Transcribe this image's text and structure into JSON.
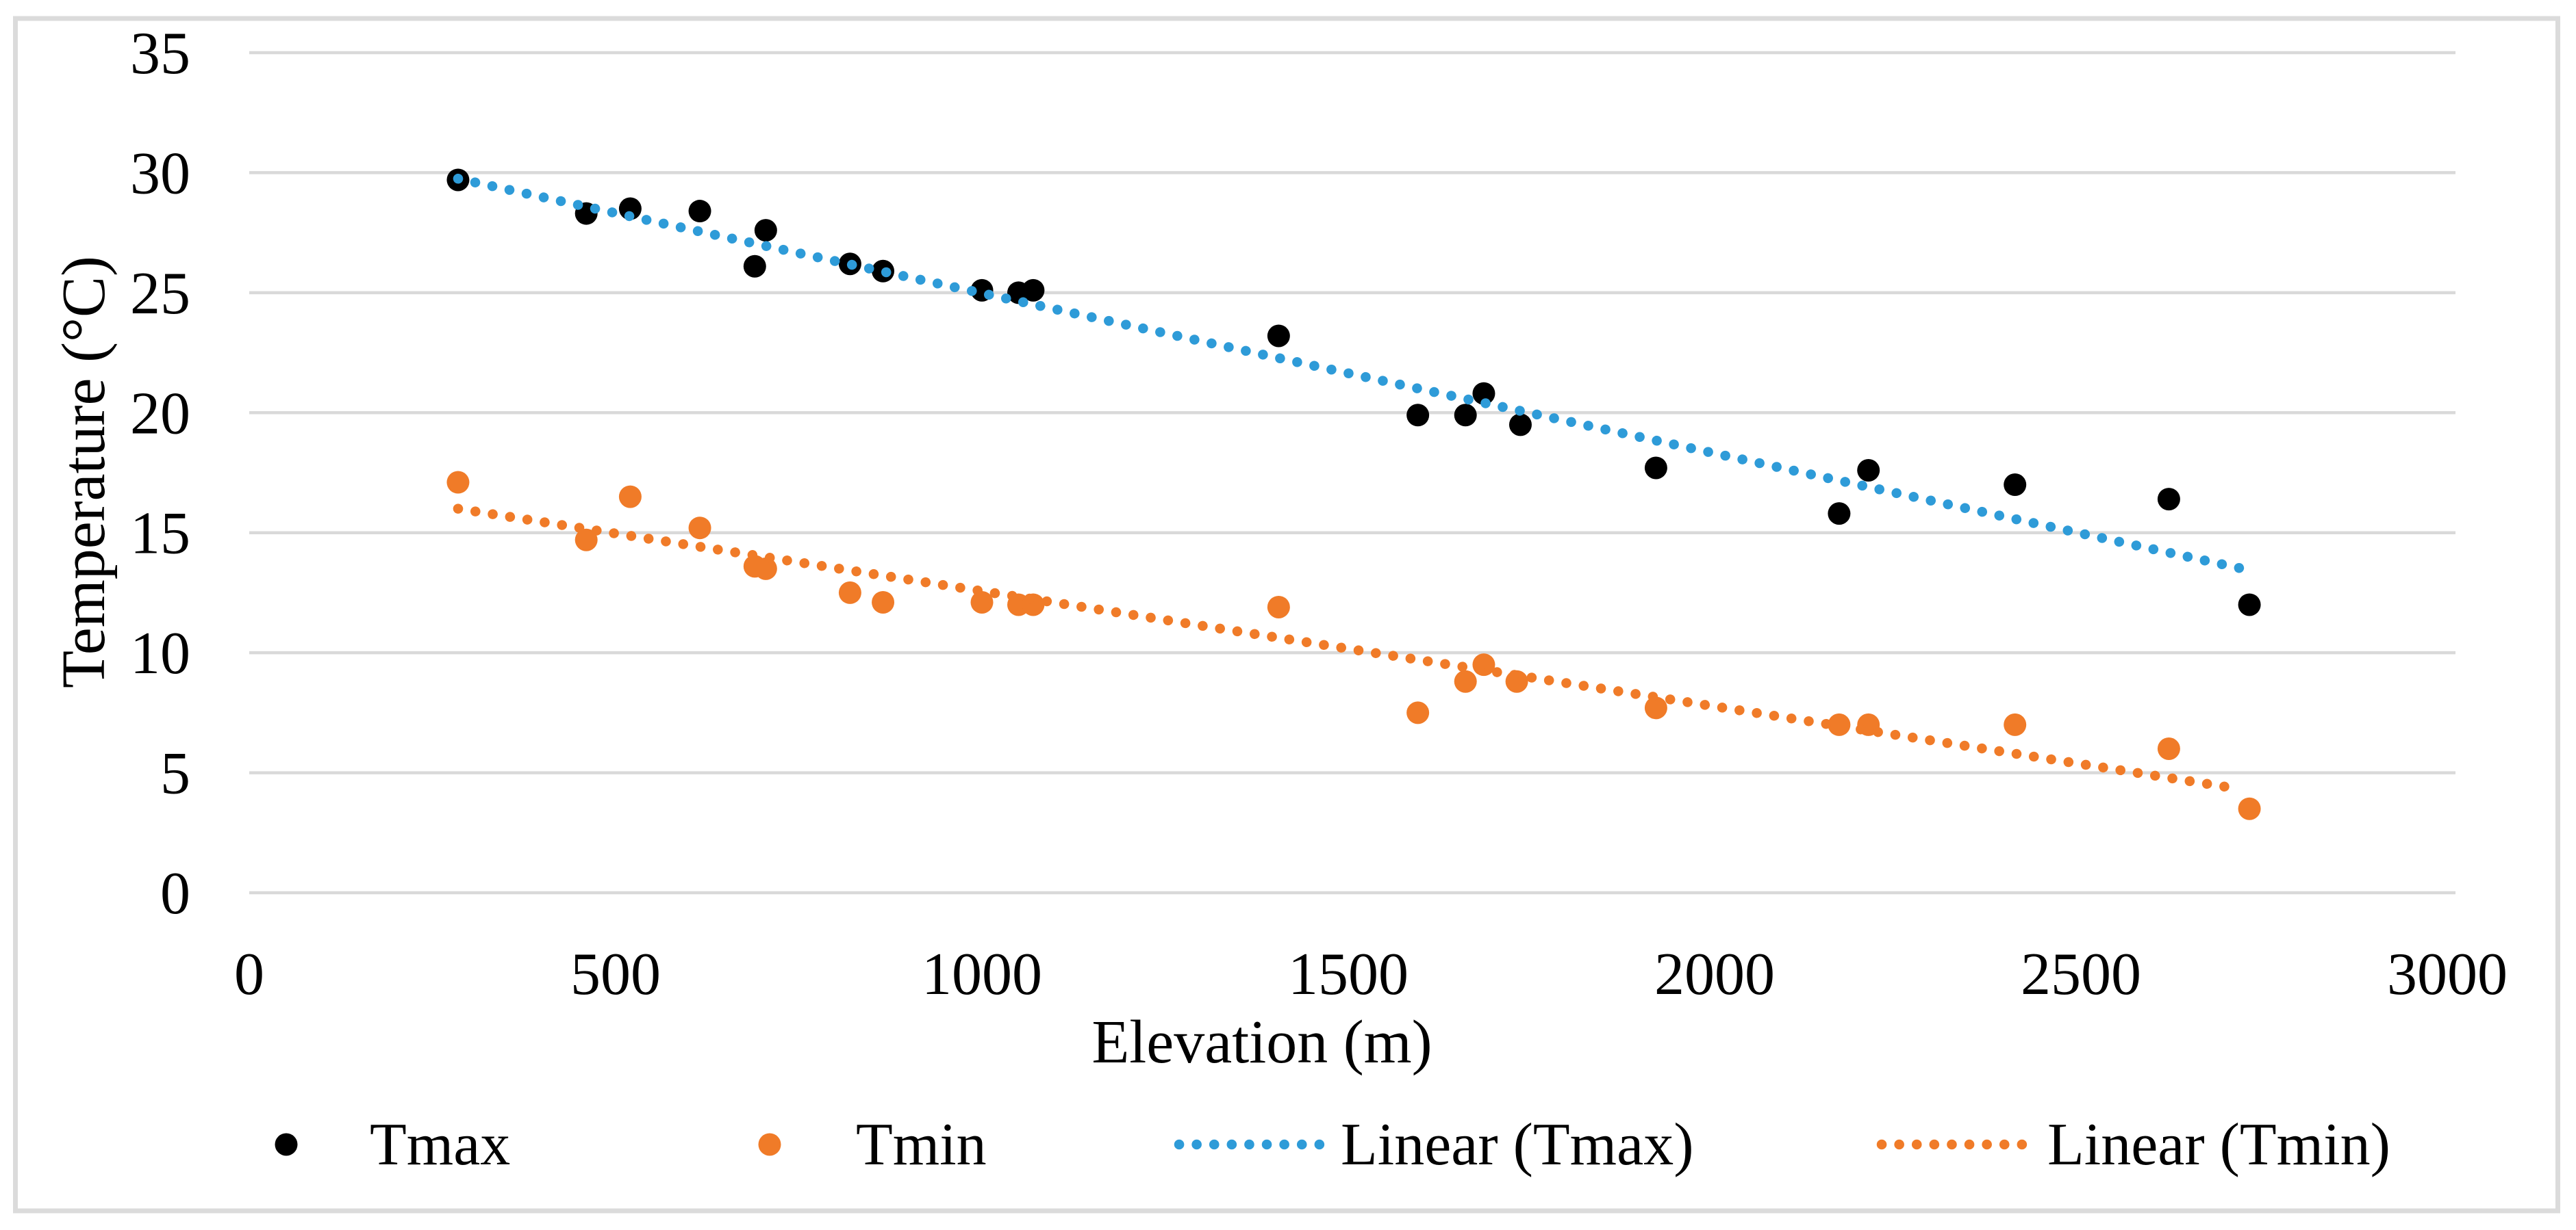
{
  "figure": {
    "background": "#FFFFFF",
    "border_color": "#DBDBDB"
  },
  "chart_data": {
    "type": "scatter",
    "title": "",
    "xlabel": "Elevation (m)",
    "ylabel": "Temperature (°C)",
    "xlim": [
      0,
      3000
    ],
    "ylim": [
      0,
      35
    ],
    "x_ticks": [
      0,
      500,
      1000,
      1500,
      2000,
      2500,
      3000
    ],
    "y_ticks": [
      0,
      5,
      10,
      15,
      20,
      25,
      30,
      35
    ],
    "grid": "horizontal-only",
    "gridline_color": "#D9D9D9",
    "legend_position": "bottom",
    "legend": [
      "Tmax",
      "Tmin",
      "Linear (Tmax)",
      "Linear (Tmin)"
    ],
    "series": [
      {
        "name": "Tmax",
        "type": "scatter",
        "color": "#000000",
        "points": [
          [
            285,
            29.7
          ],
          [
            460,
            28.3
          ],
          [
            520,
            28.5
          ],
          [
            615,
            28.4
          ],
          [
            690,
            26.1
          ],
          [
            705,
            27.6
          ],
          [
            820,
            26.2
          ],
          [
            865,
            25.9
          ],
          [
            1000,
            25.1
          ],
          [
            1050,
            25.0
          ],
          [
            1070,
            25.1
          ],
          [
            1405,
            23.2
          ],
          [
            1595,
            19.9
          ],
          [
            1660,
            19.9
          ],
          [
            1685,
            20.8
          ],
          [
            1735,
            19.5
          ],
          [
            1920,
            17.7
          ],
          [
            2170,
            15.8
          ],
          [
            2210,
            17.6
          ],
          [
            2410,
            17.0
          ],
          [
            2620,
            16.4
          ],
          [
            2730,
            12.0
          ]
        ]
      },
      {
        "name": "Tmin",
        "type": "scatter",
        "color": "#F07B28",
        "points": [
          [
            285,
            17.1
          ],
          [
            460,
            14.7
          ],
          [
            520,
            16.5
          ],
          [
            615,
            15.2
          ],
          [
            690,
            13.6
          ],
          [
            705,
            13.5
          ],
          [
            820,
            12.5
          ],
          [
            865,
            12.1
          ],
          [
            1000,
            12.1
          ],
          [
            1050,
            12.0
          ],
          [
            1070,
            12.0
          ],
          [
            1405,
            11.9
          ],
          [
            1595,
            7.5
          ],
          [
            1660,
            8.8
          ],
          [
            1685,
            9.5
          ],
          [
            1730,
            8.8
          ],
          [
            1920,
            7.7
          ],
          [
            2170,
            7.0
          ],
          [
            2210,
            7.0
          ],
          [
            2410,
            7.0
          ],
          [
            2620,
            6.0
          ],
          [
            2730,
            3.5
          ]
        ]
      },
      {
        "name": "Linear (Tmax)",
        "type": "trendline",
        "style": "dotted",
        "color": "#2E9BD8",
        "from": [
          285,
          29.75
        ],
        "to": [
          2728,
          13.45
        ]
      },
      {
        "name": "Linear (Tmin)",
        "type": "trendline",
        "style": "dotted",
        "color": "#F07B28",
        "from": [
          285,
          16.0
        ],
        "to": [
          2711,
          4.35
        ]
      }
    ]
  }
}
